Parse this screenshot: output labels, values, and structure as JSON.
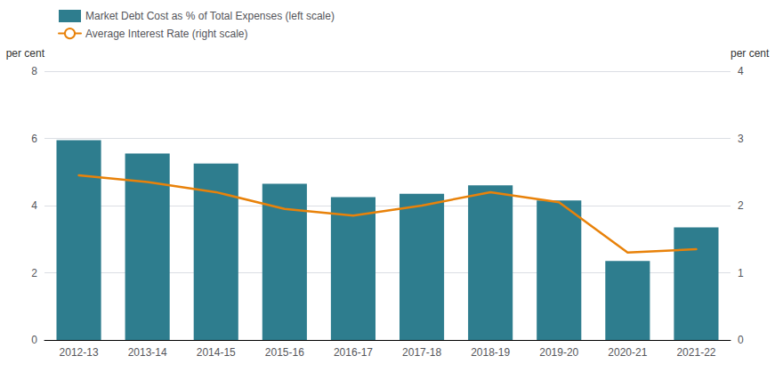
{
  "chart_data": {
    "type": "bar",
    "ylabel": "per cent",
    "y2label": "per cent",
    "categories": [
      "2012-13",
      "2013-14",
      "2014-15",
      "2015-16",
      "2016-17",
      "2017-18",
      "2018-19",
      "2019-20",
      "2020-21",
      "2021-22"
    ],
    "series": [
      {
        "name": "Market Debt Cost as % of Total Expenses (left scale)",
        "type": "bar",
        "color": "#2E7D8E",
        "values": [
          5.95,
          5.55,
          5.25,
          4.65,
          4.25,
          4.35,
          4.6,
          4.15,
          2.35,
          3.35
        ]
      },
      {
        "name": "Average Interest Rate (right scale)",
        "type": "line",
        "axis": "y2",
        "color": "#E8820A",
        "values": [
          2.45,
          2.35,
          2.2,
          1.95,
          1.85,
          2.0,
          2.2,
          2.05,
          1.3,
          1.35
        ]
      }
    ],
    "ylim": [
      0,
      8
    ],
    "yticks": [
      0,
      2,
      4,
      6,
      8
    ],
    "y2lim": [
      0,
      4
    ],
    "y2ticks": [
      0,
      1,
      2,
      3,
      4
    ],
    "grid": true,
    "legend": "upper left"
  }
}
